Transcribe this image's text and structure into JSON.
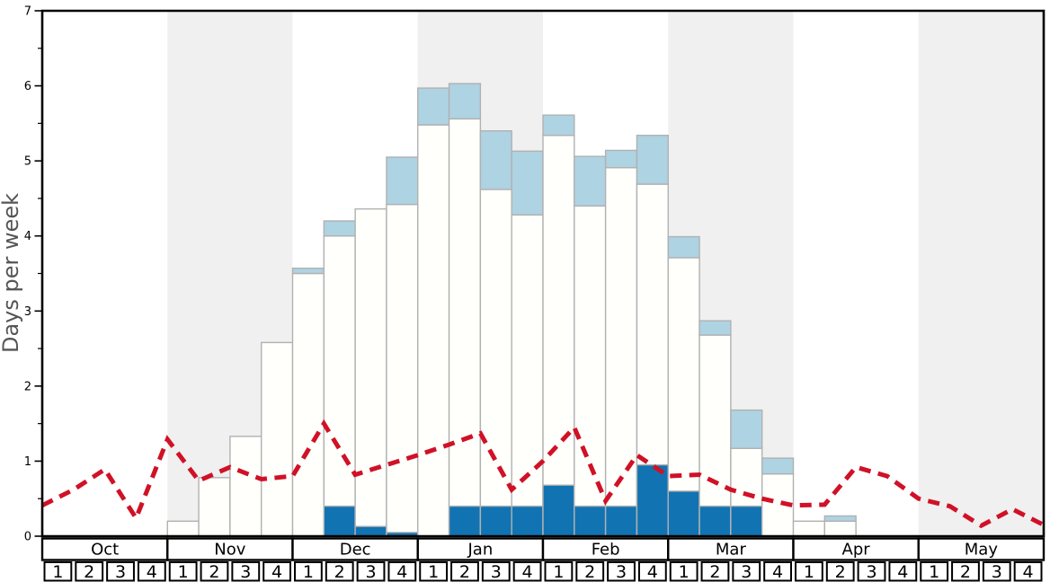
{
  "chart_data": {
    "type": "bar+line",
    "title": "",
    "ylabel": "Days per week",
    "ylim": [
      0,
      7
    ],
    "yticks": [
      "0",
      "1",
      "2",
      "3",
      "4",
      "5",
      "6",
      "7"
    ],
    "grid": "off",
    "legend": "none",
    "x_structure": {
      "months": [
        "Oct",
        "Nov",
        "Dec",
        "Jan",
        "Feb",
        "Mar",
        "Apr",
        "May"
      ],
      "weeks_per_month": [
        "1",
        "2",
        "3",
        "4"
      ],
      "shaded_month_indices": [
        1,
        3,
        5,
        7
      ]
    },
    "bars": {
      "note": "32 weekly stacked bars (Oct w1 .. May w4); values are days-per-week; tops are cumulative",
      "dark_blue_top": [
        0,
        0,
        0,
        0,
        0,
        0,
        0,
        0,
        0,
        0.4,
        0.13,
        0.05,
        0,
        0.4,
        0.4,
        0.4,
        0.68,
        0.4,
        0.4,
        0.95,
        0.6,
        0.4,
        0.4,
        0,
        0,
        0,
        0,
        0,
        0,
        0,
        0,
        0
      ],
      "white_top": [
        0,
        0,
        0,
        0,
        0.2,
        0.78,
        1.33,
        2.58,
        3.5,
        4.0,
        4.36,
        4.42,
        5.48,
        5.56,
        4.62,
        4.28,
        5.34,
        4.4,
        4.91,
        4.69,
        3.71,
        2.68,
        1.17,
        0.83,
        0.2,
        0.2,
        0,
        0,
        0,
        0,
        0,
        0
      ],
      "light_blue_top": [
        0,
        0,
        0,
        0,
        0.2,
        0.78,
        1.33,
        2.58,
        3.57,
        4.2,
        4.36,
        5.05,
        5.97,
        6.03,
        5.4,
        5.13,
        5.61,
        5.06,
        5.14,
        5.34,
        3.99,
        2.87,
        1.68,
        1.04,
        0.2,
        0.27,
        0,
        0,
        0,
        0,
        0,
        0
      ]
    },
    "red_dashed_line": {
      "x_positions": "weekly boundaries, index 0..32 across Oct-May",
      "values": [
        0.41,
        0.62,
        0.89,
        0.24,
        1.29,
        0.74,
        0.92,
        0.76,
        0.8,
        1.5,
        0.82,
        0.95,
        1.08,
        1.22,
        1.37,
        0.62,
        1.0,
        1.45,
        0.47,
        1.08,
        0.8,
        0.82,
        0.62,
        0.5,
        0.41,
        0.42,
        0.92,
        0.8,
        0.5,
        0.4,
        0.14,
        0.36,
        0.15
      ]
    },
    "colors": {
      "dark_blue": "#1173b2",
      "light_blue": "#aed3e2",
      "bar_white": "#fffffc",
      "bar_border": "#b1b1b1",
      "red_line": "#d01126",
      "shaded_band": "#f0f0f0",
      "axis": "#000000",
      "ylabel_text": "#555555"
    }
  }
}
